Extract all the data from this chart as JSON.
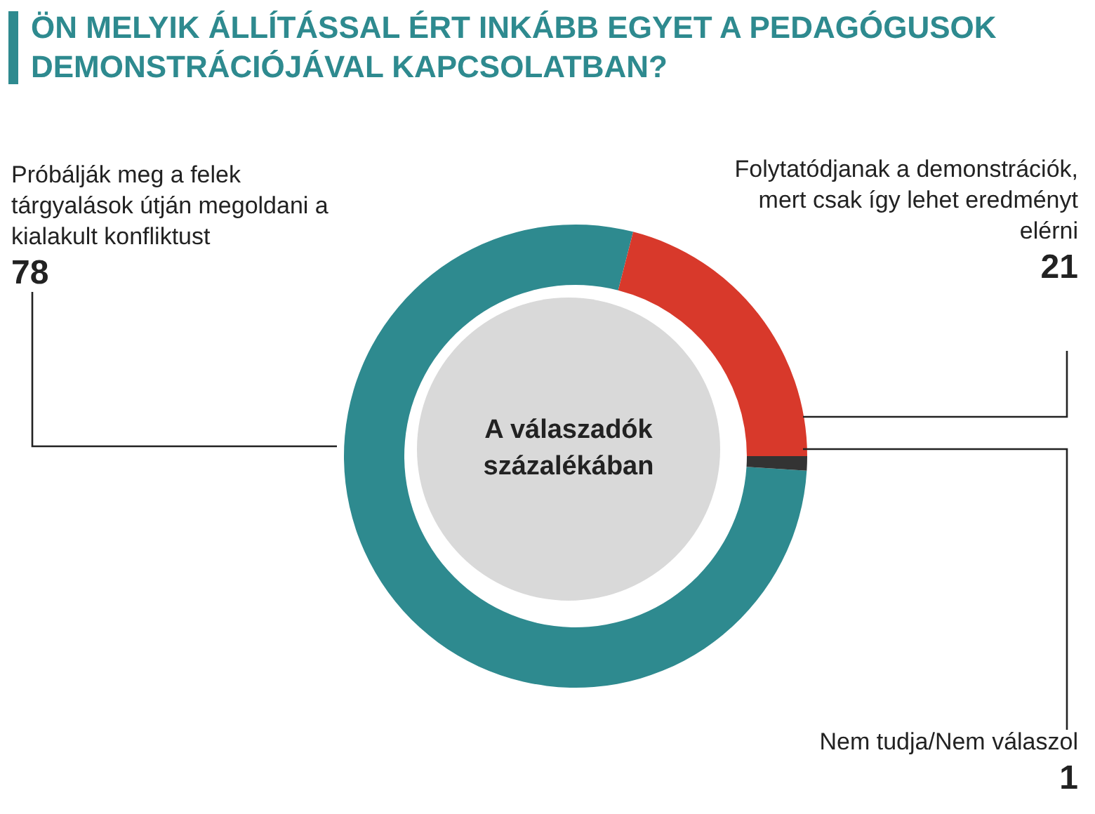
{
  "chart_data": {
    "type": "donut",
    "title": "ÖN MELYIK ÁLLÍTÁSSAL ÉRT INKÁBB EGYET A PEDAGÓGUSOK DEMONSTRÁCIÓJÁVAL KAPCSOLATBAN?",
    "categories": [
      "Próbálják meg a felek tárgyalások útján megoldani a kialakult konfliktust",
      "Folytatódjanak a demonstrációk, mert csak így lehet eredményt elérni",
      "Nem tudja/Nem válaszol"
    ],
    "values": [
      78,
      21,
      1
    ],
    "colors": [
      "#2e8a8f",
      "#d8392b",
      "#333333"
    ],
    "annotations": [
      "A válaszadók százalékában"
    ],
    "data_labels": true,
    "legend": false
  }
}
